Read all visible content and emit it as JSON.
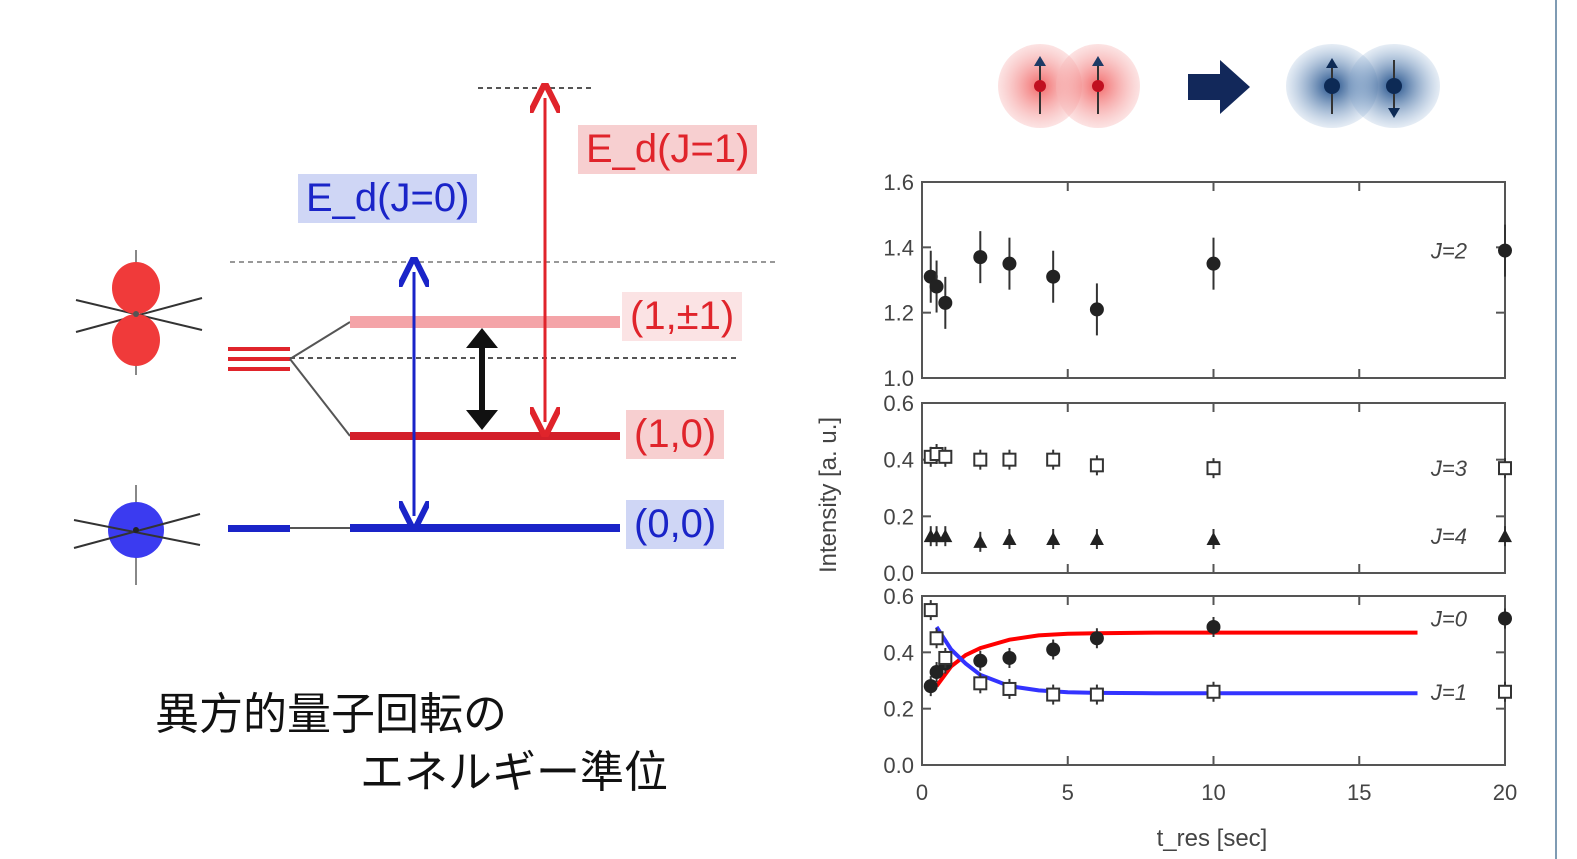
{
  "diagram": {
    "energy_labels": {
      "ed1": "E_d(J=1)",
      "ed0": "E_d(J=0)"
    },
    "state_labels": {
      "s11": "(1,±1)",
      "s10": "(1,0)",
      "s00": "(0,0)"
    },
    "caption": {
      "line1": "異方的量子回転の",
      "line2": "エネルギー準位"
    },
    "colors": {
      "red": "#e0242b",
      "blue": "#1a24c8",
      "light_red": "#f7cfd0",
      "light_blue": "#cfd6f5"
    }
  },
  "chart_data": {
    "type": "scatter",
    "xlabel": "t_res [sec]",
    "ylabel": "Intensity [a. u.]",
    "xlim": [
      0,
      20
    ],
    "xticks": [
      "0",
      "5",
      "10",
      "15",
      "20"
    ],
    "panels": [
      {
        "ylim": [
          1.0,
          1.6
        ],
        "yticks": [
          "1.0",
          "1.2",
          "1.4",
          "1.6"
        ],
        "series": [
          {
            "name": "J=2",
            "marker": "filled-circle",
            "x": [
              0.3,
              0.5,
              0.8,
              2,
              3,
              4.5,
              6,
              10,
              20
            ],
            "y": [
              1.31,
              1.28,
              1.23,
              1.37,
              1.35,
              1.31,
              1.21,
              1.35,
              1.39
            ]
          }
        ]
      },
      {
        "ylim": [
          0.0,
          0.6
        ],
        "yticks": [
          "0.0",
          "0.2",
          "0.4",
          "0.6"
        ],
        "series": [
          {
            "name": "J=3",
            "marker": "open-square",
            "x": [
              0.3,
              0.5,
              0.8,
              2,
              3,
              4.5,
              6,
              10,
              20
            ],
            "y": [
              0.41,
              0.42,
              0.41,
              0.4,
              0.4,
              0.4,
              0.38,
              0.37,
              0.37
            ]
          },
          {
            "name": "J=4",
            "marker": "filled-triangle",
            "x": [
              0.3,
              0.5,
              0.8,
              2,
              3,
              4.5,
              6,
              10,
              20
            ],
            "y": [
              0.13,
              0.13,
              0.13,
              0.11,
              0.12,
              0.12,
              0.12,
              0.12,
              0.13
            ]
          }
        ]
      },
      {
        "ylim": [
          0.0,
          0.6
        ],
        "yticks": [
          "0.0",
          "0.2",
          "0.4",
          "0.6"
        ],
        "series": [
          {
            "name": "J=0",
            "marker": "filled-circle",
            "x": [
              0.3,
              0.5,
              0.8,
              2,
              3,
              4.5,
              6,
              10,
              20
            ],
            "y": [
              0.28,
              0.33,
              0.36,
              0.37,
              0.38,
              0.41,
              0.45,
              0.49,
              0.52
            ]
          },
          {
            "name": "J=1",
            "marker": "open-square",
            "x": [
              0.3,
              0.5,
              0.8,
              2,
              3,
              4.5,
              6,
              10,
              20
            ],
            "y": [
              0.55,
              0.45,
              0.38,
              0.29,
              0.27,
              0.25,
              0.25,
              0.26,
              0.26
            ]
          }
        ],
        "fits": [
          {
            "color": "#ff0000",
            "x": [
              0.5,
              1,
              1.5,
              2,
              3,
              4,
              5,
              6,
              8,
              10,
              17
            ],
            "y": [
              0.28,
              0.35,
              0.39,
              0.415,
              0.445,
              0.46,
              0.466,
              0.468,
              0.47,
              0.47,
              0.47
            ]
          },
          {
            "color": "#3333ff",
            "x": [
              0.5,
              1,
              1.5,
              2,
              3,
              4,
              5,
              6,
              8,
              10,
              17
            ],
            "y": [
              0.49,
              0.41,
              0.36,
              0.32,
              0.28,
              0.265,
              0.258,
              0.256,
              0.255,
              0.255,
              0.255
            ]
          }
        ]
      }
    ]
  }
}
